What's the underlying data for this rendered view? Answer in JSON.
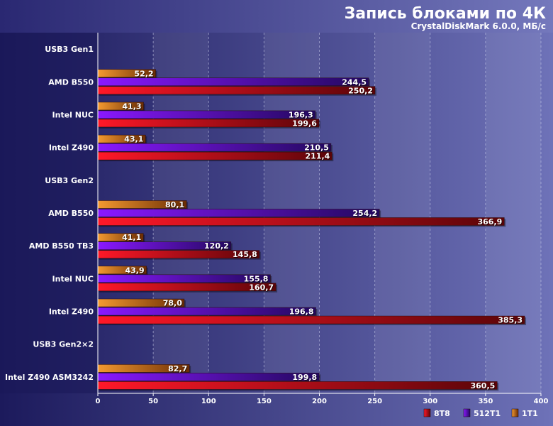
{
  "chart_data": {
    "type": "bar",
    "orientation": "horizontal",
    "title": "Запись блоками по 4К",
    "subtitle": "CrystalDiskMark 6.0.0, МБ/с",
    "xlim": [
      0,
      400
    ],
    "x_ticks": [
      "0",
      "50",
      "100",
      "150",
      "200",
      "250",
      "300",
      "350",
      "400"
    ],
    "grid": true,
    "legend_position": "bottom-right",
    "rows": [
      {
        "label": "USB3 Gen1",
        "group_header": true
      },
      {
        "label": "AMD B550",
        "values": [
          "52,2",
          "244,5",
          "250,2"
        ]
      },
      {
        "label": "Intel NUC",
        "values": [
          "41,3",
          "196,3",
          "199,6"
        ]
      },
      {
        "label": "Intel Z490",
        "values": [
          "43,1",
          "210,5",
          "211,4"
        ]
      },
      {
        "label": "USB3 Gen2",
        "group_header": true
      },
      {
        "label": "AMD B550",
        "values": [
          "80,1",
          "254,2",
          "366,9"
        ]
      },
      {
        "label": "AMD B550 TB3",
        "values": [
          "41,1",
          "120,2",
          "145,8"
        ]
      },
      {
        "label": "Intel NUC",
        "values": [
          "43,9",
          "155,8",
          "160,7"
        ]
      },
      {
        "label": "Intel Z490",
        "values": [
          "78,0",
          "196,8",
          "385,3"
        ]
      },
      {
        "label": "USB3 Gen2×2",
        "group_header": true
      },
      {
        "label": "Intel Z490 ASM3242",
        "values": [
          "82,7",
          "199,8",
          "360,5"
        ]
      }
    ],
    "series": [
      {
        "name": "1T1",
        "color": "#e07818"
      },
      {
        "name": "512T1",
        "color": "#7a10e0"
      },
      {
        "name": "8T8",
        "color": "#e81020"
      }
    ],
    "legend_order": [
      "8T8",
      "512T1",
      "1T1"
    ]
  }
}
